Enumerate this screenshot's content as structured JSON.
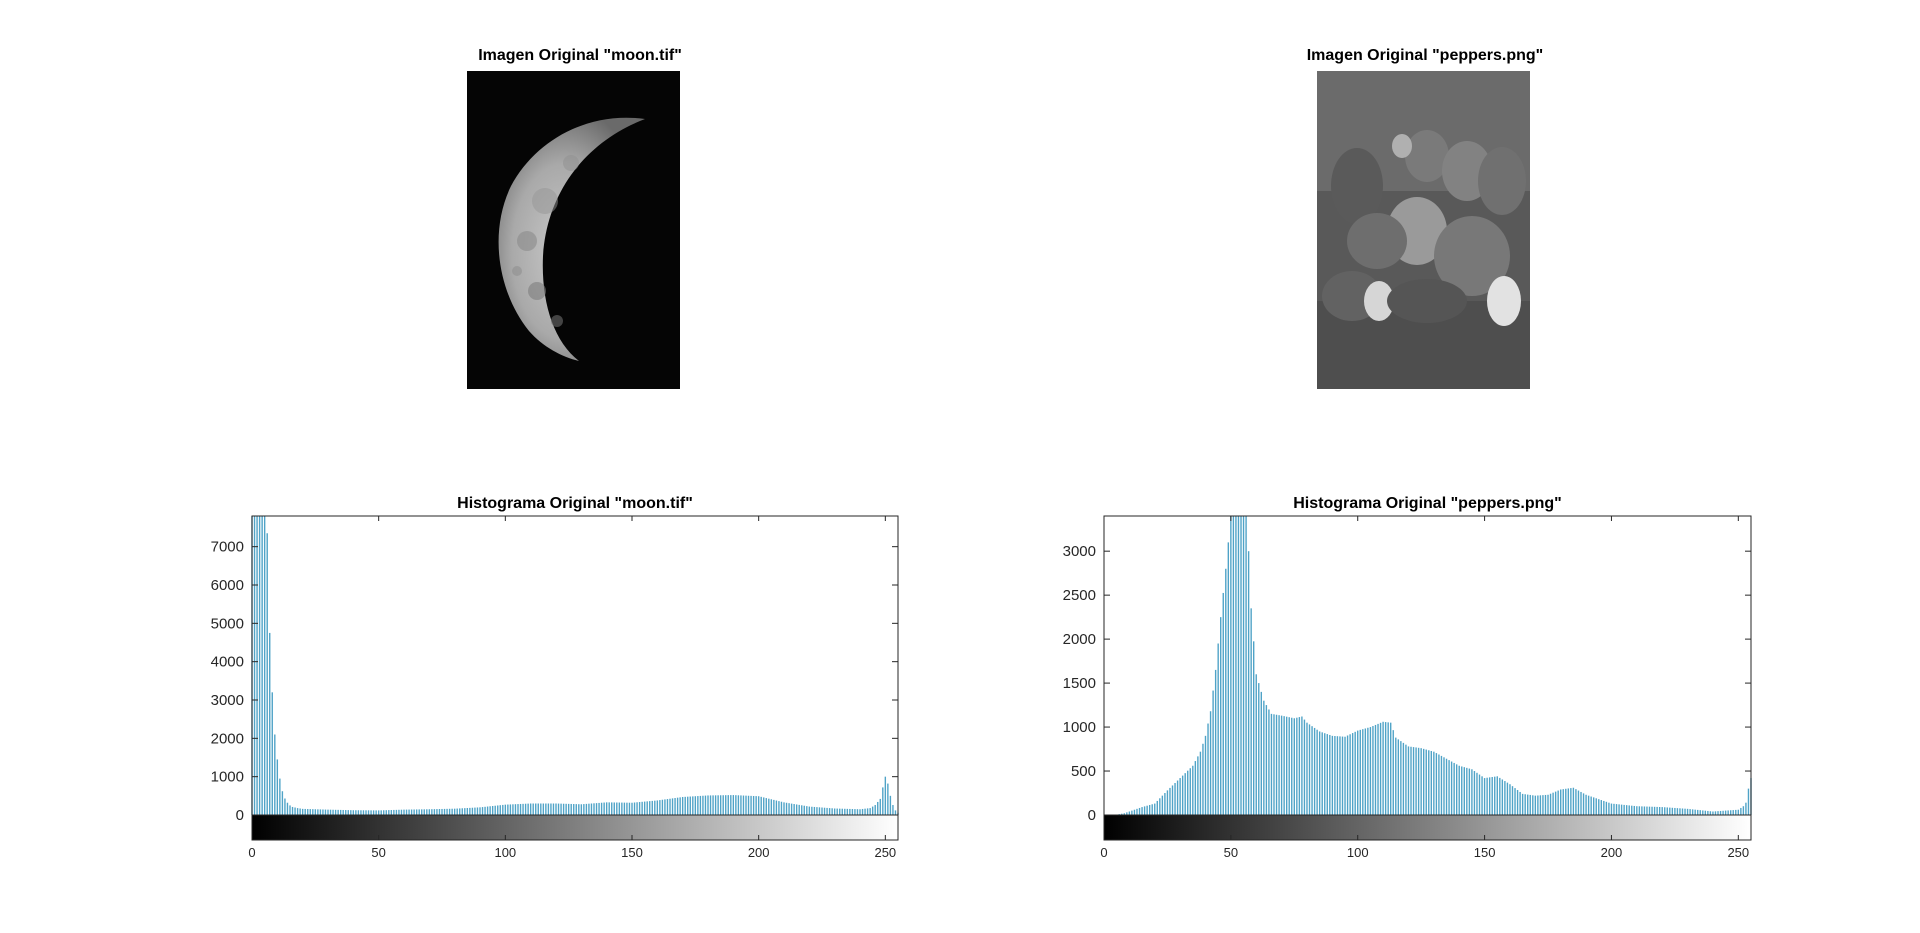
{
  "figure": {
    "moon_image_title": "Imagen Original \"moon.tif\"",
    "peppers_image_title": "Imagen Original \"peppers.png\""
  },
  "chart_data": [
    {
      "type": "bar",
      "title": "Histograma Original \"moon.tif\"",
      "xlabel": "",
      "ylabel": "",
      "xlim": [
        0,
        255
      ],
      "ylim": [
        0,
        7800
      ],
      "xticks": [
        0,
        50,
        100,
        150,
        200,
        250
      ],
      "yticks": [
        0,
        1000,
        2000,
        3000,
        4000,
        5000,
        6000,
        7000
      ],
      "grid": false,
      "colorbar": "gray",
      "bar_color": "#4fa3c7",
      "profile": [
        [
          0,
          8000
        ],
        [
          1,
          8000
        ],
        [
          2,
          8000
        ],
        [
          3,
          8000
        ],
        [
          4,
          8000
        ],
        [
          5,
          8000
        ],
        [
          6,
          7350
        ],
        [
          7,
          4750
        ],
        [
          8,
          3200
        ],
        [
          9,
          2100
        ],
        [
          10,
          1450
        ],
        [
          11,
          950
        ],
        [
          12,
          620
        ],
        [
          13,
          430
        ],
        [
          14,
          320
        ],
        [
          15,
          250
        ],
        [
          16,
          210
        ],
        [
          18,
          180
        ],
        [
          20,
          160
        ],
        [
          30,
          140
        ],
        [
          40,
          125
        ],
        [
          50,
          120
        ],
        [
          60,
          140
        ],
        [
          70,
          150
        ],
        [
          80,
          165
        ],
        [
          90,
          200
        ],
        [
          100,
          270
        ],
        [
          110,
          300
        ],
        [
          120,
          300
        ],
        [
          130,
          280
        ],
        [
          140,
          330
        ],
        [
          150,
          320
        ],
        [
          160,
          380
        ],
        [
          170,
          470
        ],
        [
          180,
          510
        ],
        [
          190,
          520
        ],
        [
          200,
          490
        ],
        [
          210,
          330
        ],
        [
          220,
          220
        ],
        [
          230,
          170
        ],
        [
          240,
          150
        ],
        [
          244,
          180
        ],
        [
          246,
          260
        ],
        [
          248,
          420
        ],
        [
          249,
          720
        ],
        [
          250,
          1000
        ],
        [
          251,
          820
        ],
        [
          252,
          500
        ],
        [
          253,
          260
        ],
        [
          254,
          120
        ],
        [
          255,
          60
        ]
      ]
    },
    {
      "type": "bar",
      "title": "Histograma Original \"peppers.png\"",
      "xlabel": "",
      "ylabel": "",
      "xlim": [
        0,
        255
      ],
      "ylim": [
        0,
        3400
      ],
      "xticks": [
        0,
        50,
        100,
        150,
        200,
        250
      ],
      "yticks": [
        0,
        500,
        1000,
        1500,
        2000,
        2500,
        3000
      ],
      "grid": false,
      "colorbar": "gray",
      "bar_color": "#4fa3c7",
      "profile": [
        [
          0,
          0
        ],
        [
          5,
          5
        ],
        [
          8,
          20
        ],
        [
          12,
          60
        ],
        [
          15,
          90
        ],
        [
          20,
          130
        ],
        [
          22,
          190
        ],
        [
          25,
          280
        ],
        [
          30,
          420
        ],
        [
          35,
          560
        ],
        [
          38,
          720
        ],
        [
          40,
          900
        ],
        [
          42,
          1180
        ],
        [
          44,
          1650
        ],
        [
          46,
          2250
        ],
        [
          48,
          2800
        ],
        [
          50,
          3400
        ],
        [
          51,
          3500
        ],
        [
          52,
          3500
        ],
        [
          53,
          3500
        ],
        [
          54,
          3500
        ],
        [
          55,
          3500
        ],
        [
          56,
          3500
        ],
        [
          57,
          3000
        ],
        [
          58,
          2350
        ],
        [
          60,
          1600
        ],
        [
          63,
          1300
        ],
        [
          66,
          1150
        ],
        [
          70,
          1130
        ],
        [
          75,
          1100
        ],
        [
          78,
          1120
        ],
        [
          80,
          1050
        ],
        [
          85,
          950
        ],
        [
          90,
          900
        ],
        [
          95,
          890
        ],
        [
          100,
          960
        ],
        [
          105,
          1000
        ],
        [
          110,
          1060
        ],
        [
          113,
          1050
        ],
        [
          115,
          880
        ],
        [
          120,
          780
        ],
        [
          125,
          760
        ],
        [
          130,
          720
        ],
        [
          135,
          640
        ],
        [
          140,
          560
        ],
        [
          145,
          520
        ],
        [
          150,
          420
        ],
        [
          155,
          440
        ],
        [
          160,
          350
        ],
        [
          165,
          240
        ],
        [
          170,
          220
        ],
        [
          175,
          230
        ],
        [
          180,
          290
        ],
        [
          185,
          310
        ],
        [
          190,
          230
        ],
        [
          200,
          130
        ],
        [
          210,
          100
        ],
        [
          220,
          90
        ],
        [
          230,
          70
        ],
        [
          240,
          40
        ],
        [
          250,
          60
        ],
        [
          252,
          100
        ],
        [
          253,
          140
        ],
        [
          254,
          300
        ],
        [
          255,
          420
        ]
      ]
    }
  ]
}
